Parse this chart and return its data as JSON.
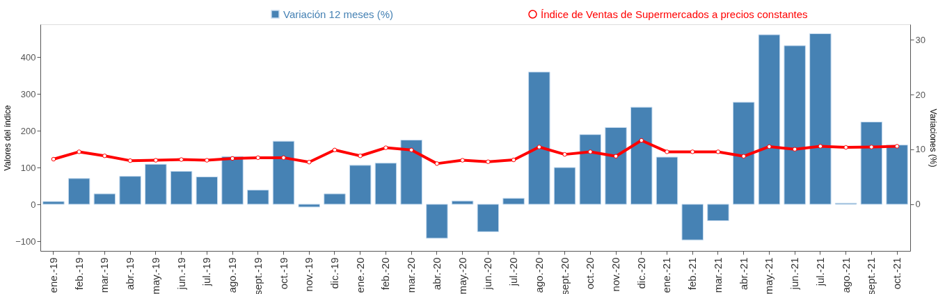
{
  "chart_data": {
    "type": "bar",
    "ylabel": "Valores del índice",
    "y2label": "Variaciones (%)",
    "categories": [
      "ene.-19",
      "feb.-19",
      "mar.-19",
      "abr.-19",
      "may.-19",
      "jun.-19",
      "jul.-19",
      "ago.-19",
      "sept.-19",
      "oct.-19",
      "nov.-19",
      "dic.-19",
      "ene.-20",
      "feb.-20",
      "mar.-20",
      "abr.-20",
      "may.-20",
      "jun.-20",
      "jul.-20",
      "ago.-20",
      "sept.-20",
      "oct.-20",
      "nov.-20",
      "dic.-20",
      "ene.-21",
      "feb.-21",
      "mar.-21",
      "abr.-21",
      "may.-21",
      "jun.-21",
      "jul.-21",
      "ago.-21",
      "sept.-21",
      "oct.-21"
    ],
    "series": [
      {
        "name": "Variación 12 meses (%)",
        "axis": "y2",
        "color": "#4682b4",
        "values": [
          0.5,
          4.7,
          1.9,
          5.1,
          7.3,
          6.0,
          5.0,
          8.7,
          2.6,
          11.5,
          -0.5,
          1.9,
          7.1,
          7.5,
          11.7,
          -6.2,
          0.6,
          -5.0,
          1.1,
          24.1,
          6.7,
          12.7,
          14.0,
          17.7,
          8.6,
          -6.5,
          -3.0,
          18.6,
          30.9,
          28.9,
          31.1,
          0.2,
          15.0,
          10.8
        ]
      },
      {
        "name": "Índice de Ventas de Supermercados a precios constantes",
        "type": "line",
        "axis": "y",
        "color": "#ff0000",
        "marker": "circle",
        "line_style": "solid",
        "values": [
          123,
          143,
          132,
          119,
          120,
          122,
          120,
          125,
          127,
          127,
          115,
          148,
          132,
          154,
          148,
          111,
          120,
          116,
          121,
          156,
          136,
          143,
          131,
          174,
          143,
          143,
          143,
          131,
          157,
          150,
          158,
          155,
          156,
          158
        ]
      }
    ],
    "ylim": [
      -126,
      489
    ],
    "yticks": [
      -100,
      0,
      100,
      200,
      300,
      400
    ],
    "y2lim": [
      -8.5,
      32.8
    ],
    "y2ticks": [
      0,
      10,
      20,
      30
    ],
    "grid": false,
    "legend": "top"
  }
}
